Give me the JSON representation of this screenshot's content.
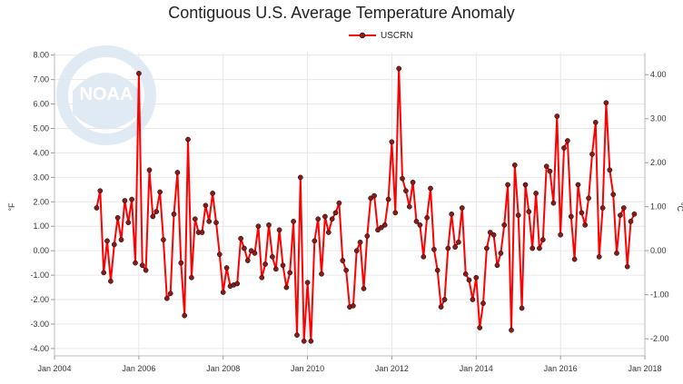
{
  "chart_data": {
    "type": "line",
    "title": "Contiguous U.S. Average Temperature Anomaly",
    "ylabel": "°F",
    "ylabel_right": "°C",
    "x_ticks": [
      "Jan 2004",
      "Jan 2006",
      "Jan 2008",
      "Jan 2010",
      "Jan 2012",
      "Jan 2014",
      "Jan 2016",
      "Jan 2018"
    ],
    "y_ticks": [
      "8.00",
      "7.00",
      "6.00",
      "5.00",
      "4.00",
      "3.00",
      "2.00",
      "1.00",
      "0.00",
      "-1.00",
      "-2.00",
      "-3.00",
      "-4.00"
    ],
    "y2_ticks": [
      "4.00",
      "3.00",
      "2.00",
      "1.00",
      "0.00",
      "-1.00",
      "-2.00"
    ],
    "xlim": [
      2004.0,
      2018.0
    ],
    "ylim": [
      -4.3,
      8.1
    ],
    "y2lim": [
      -2.39,
      4.5
    ],
    "grid": true,
    "legend_position": "top-center",
    "series": [
      {
        "name": "USCRN",
        "color": "#ff0000",
        "marker_color": "#8b1a1a",
        "start_year": 2005,
        "start_month": 1,
        "values": [
          1.75,
          2.45,
          -0.9,
          0.4,
          -1.25,
          0.25,
          1.35,
          0.45,
          2.05,
          1.15,
          2.1,
          -0.5,
          7.25,
          -0.6,
          -0.8,
          3.3,
          1.4,
          1.6,
          2.4,
          0.45,
          -1.95,
          -1.75,
          1.5,
          3.2,
          -0.5,
          -2.65,
          4.55,
          -1.1,
          1.3,
          0.75,
          0.75,
          1.85,
          1.2,
          2.35,
          1.15,
          -0.15,
          -1.7,
          -0.7,
          -1.45,
          -1.4,
          -1.35,
          0.5,
          0.1,
          -0.4,
          0.0,
          -0.1,
          1.0,
          -1.1,
          -0.55,
          1.05,
          -0.25,
          -0.75,
          0.85,
          -0.6,
          -1.5,
          -0.9,
          1.2,
          -3.45,
          3.0,
          -3.7,
          -1.3,
          -3.7,
          0.4,
          1.3,
          -0.95,
          1.4,
          0.75,
          1.3,
          1.55,
          1.95,
          -0.4,
          -0.8,
          -2.3,
          -2.25,
          0.0,
          0.35,
          -1.55,
          0.6,
          2.15,
          2.25,
          0.85,
          0.95,
          1.05,
          2.1,
          4.45,
          1.55,
          7.45,
          2.95,
          2.45,
          1.8,
          2.8,
          1.2,
          1.05,
          -0.25,
          1.35,
          2.55,
          0.05,
          -0.8,
          -2.3,
          -2.0,
          0.1,
          1.5,
          0.15,
          0.35,
          1.75,
          -0.95,
          -1.2,
          -2.0,
          -1.1,
          -3.15,
          -2.15,
          0.1,
          0.75,
          0.65,
          -0.6,
          -0.1,
          1.05,
          2.7,
          -3.25,
          3.5,
          1.45,
          -2.35,
          2.7,
          1.6,
          0.1,
          2.35,
          0.1,
          0.45,
          3.45,
          3.25,
          1.95,
          5.5,
          0.65,
          4.2,
          4.5,
          1.4,
          -0.35,
          2.7,
          1.55,
          1.05,
          2.15,
          3.95,
          5.25,
          -0.25,
          1.75,
          6.05,
          3.3,
          2.3,
          -0.1,
          1.45,
          1.75,
          -0.65,
          1.2,
          1.5
        ]
      }
    ]
  }
}
